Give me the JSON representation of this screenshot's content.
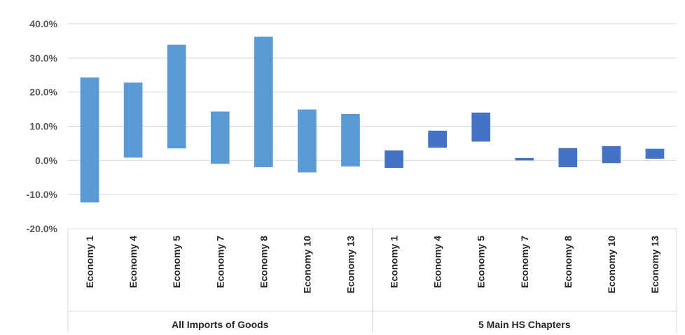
{
  "chart_data": {
    "type": "bar",
    "subtype": "floating-range",
    "title": "",
    "xlabel": "",
    "ylabel": "",
    "ylim": [
      -20,
      40
    ],
    "y_ticks": [
      "-20.0%",
      "-10.0%",
      "0.0%",
      "10.0%",
      "20.0%",
      "30.0%",
      "40.0%"
    ],
    "y_tick_values": [
      -20,
      -10,
      0,
      10,
      20,
      30,
      40
    ],
    "grid": "horizontal",
    "groups": [
      {
        "label": "All Imports of Goods",
        "color": "#5B9BD5",
        "categories": [
          "Economy 1",
          "Economy 4",
          "Economy 5",
          "Economy 7",
          "Economy 8",
          "Economy 10",
          "Economy 13"
        ],
        "low": [
          -12.3,
          0.8,
          3.5,
          -1.0,
          -2.0,
          -3.5,
          -1.8
        ],
        "high": [
          24.3,
          22.8,
          33.9,
          14.3,
          36.2,
          14.9,
          13.6
        ]
      },
      {
        "label": "5 Main HS Chapters",
        "color": "#4472C4",
        "categories": [
          "Economy 1",
          "Economy 4",
          "Economy 5",
          "Economy 7",
          "Economy 8",
          "Economy 10",
          "Economy 13"
        ],
        "low": [
          -2.2,
          3.7,
          5.5,
          0.0,
          -2.0,
          -0.8,
          0.5
        ],
        "high": [
          2.9,
          8.7,
          14.0,
          0.7,
          3.6,
          4.2,
          3.4
        ]
      }
    ]
  }
}
